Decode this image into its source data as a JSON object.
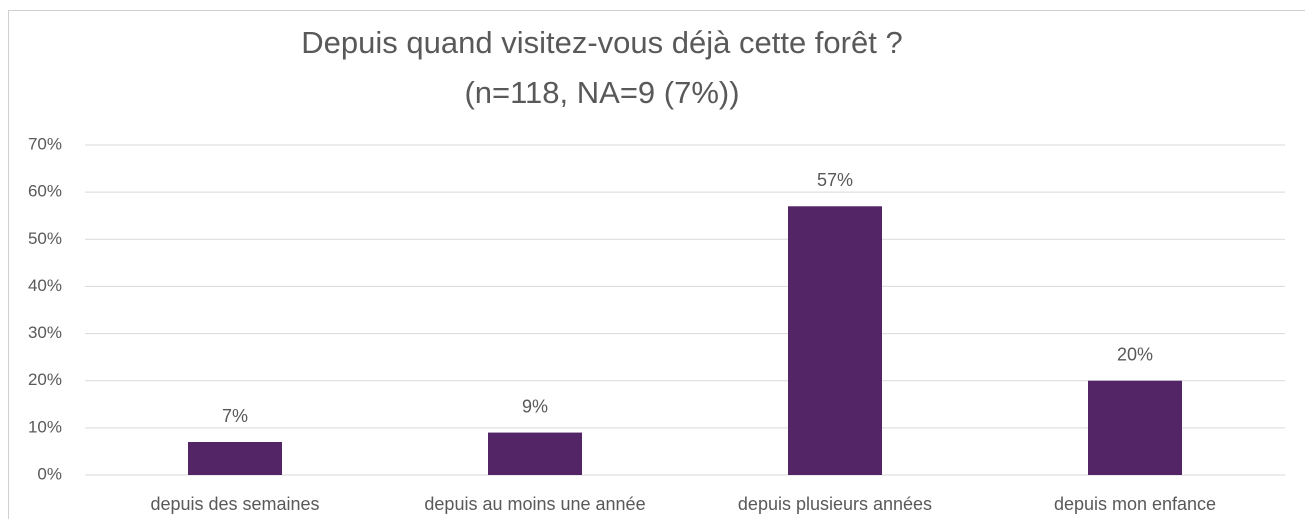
{
  "chart_data": {
    "type": "bar",
    "title": "Depuis quand visitez-vous déjà cette forêt ?",
    "subtitle": "(n=118, NA=9 (7%))",
    "categories": [
      "depuis des semaines",
      "depuis au moins une année",
      "depuis plusieurs années",
      "depuis mon enfance"
    ],
    "values": [
      7,
      9,
      57,
      20
    ],
    "value_labels": [
      "7%",
      "9%",
      "57%",
      "20%"
    ],
    "color": "#532566",
    "ylim": [
      0,
      70
    ],
    "yticks": [
      {
        "value": 0,
        "label": "0%"
      },
      {
        "value": 10,
        "label": "10%"
      },
      {
        "value": 20,
        "label": "20%"
      },
      {
        "value": 30,
        "label": "30%"
      },
      {
        "value": 40,
        "label": "40%"
      },
      {
        "value": 50,
        "label": "50%"
      },
      {
        "value": 60,
        "label": "60%"
      },
      {
        "value": 70,
        "label": "70%"
      }
    ],
    "grid": true
  }
}
